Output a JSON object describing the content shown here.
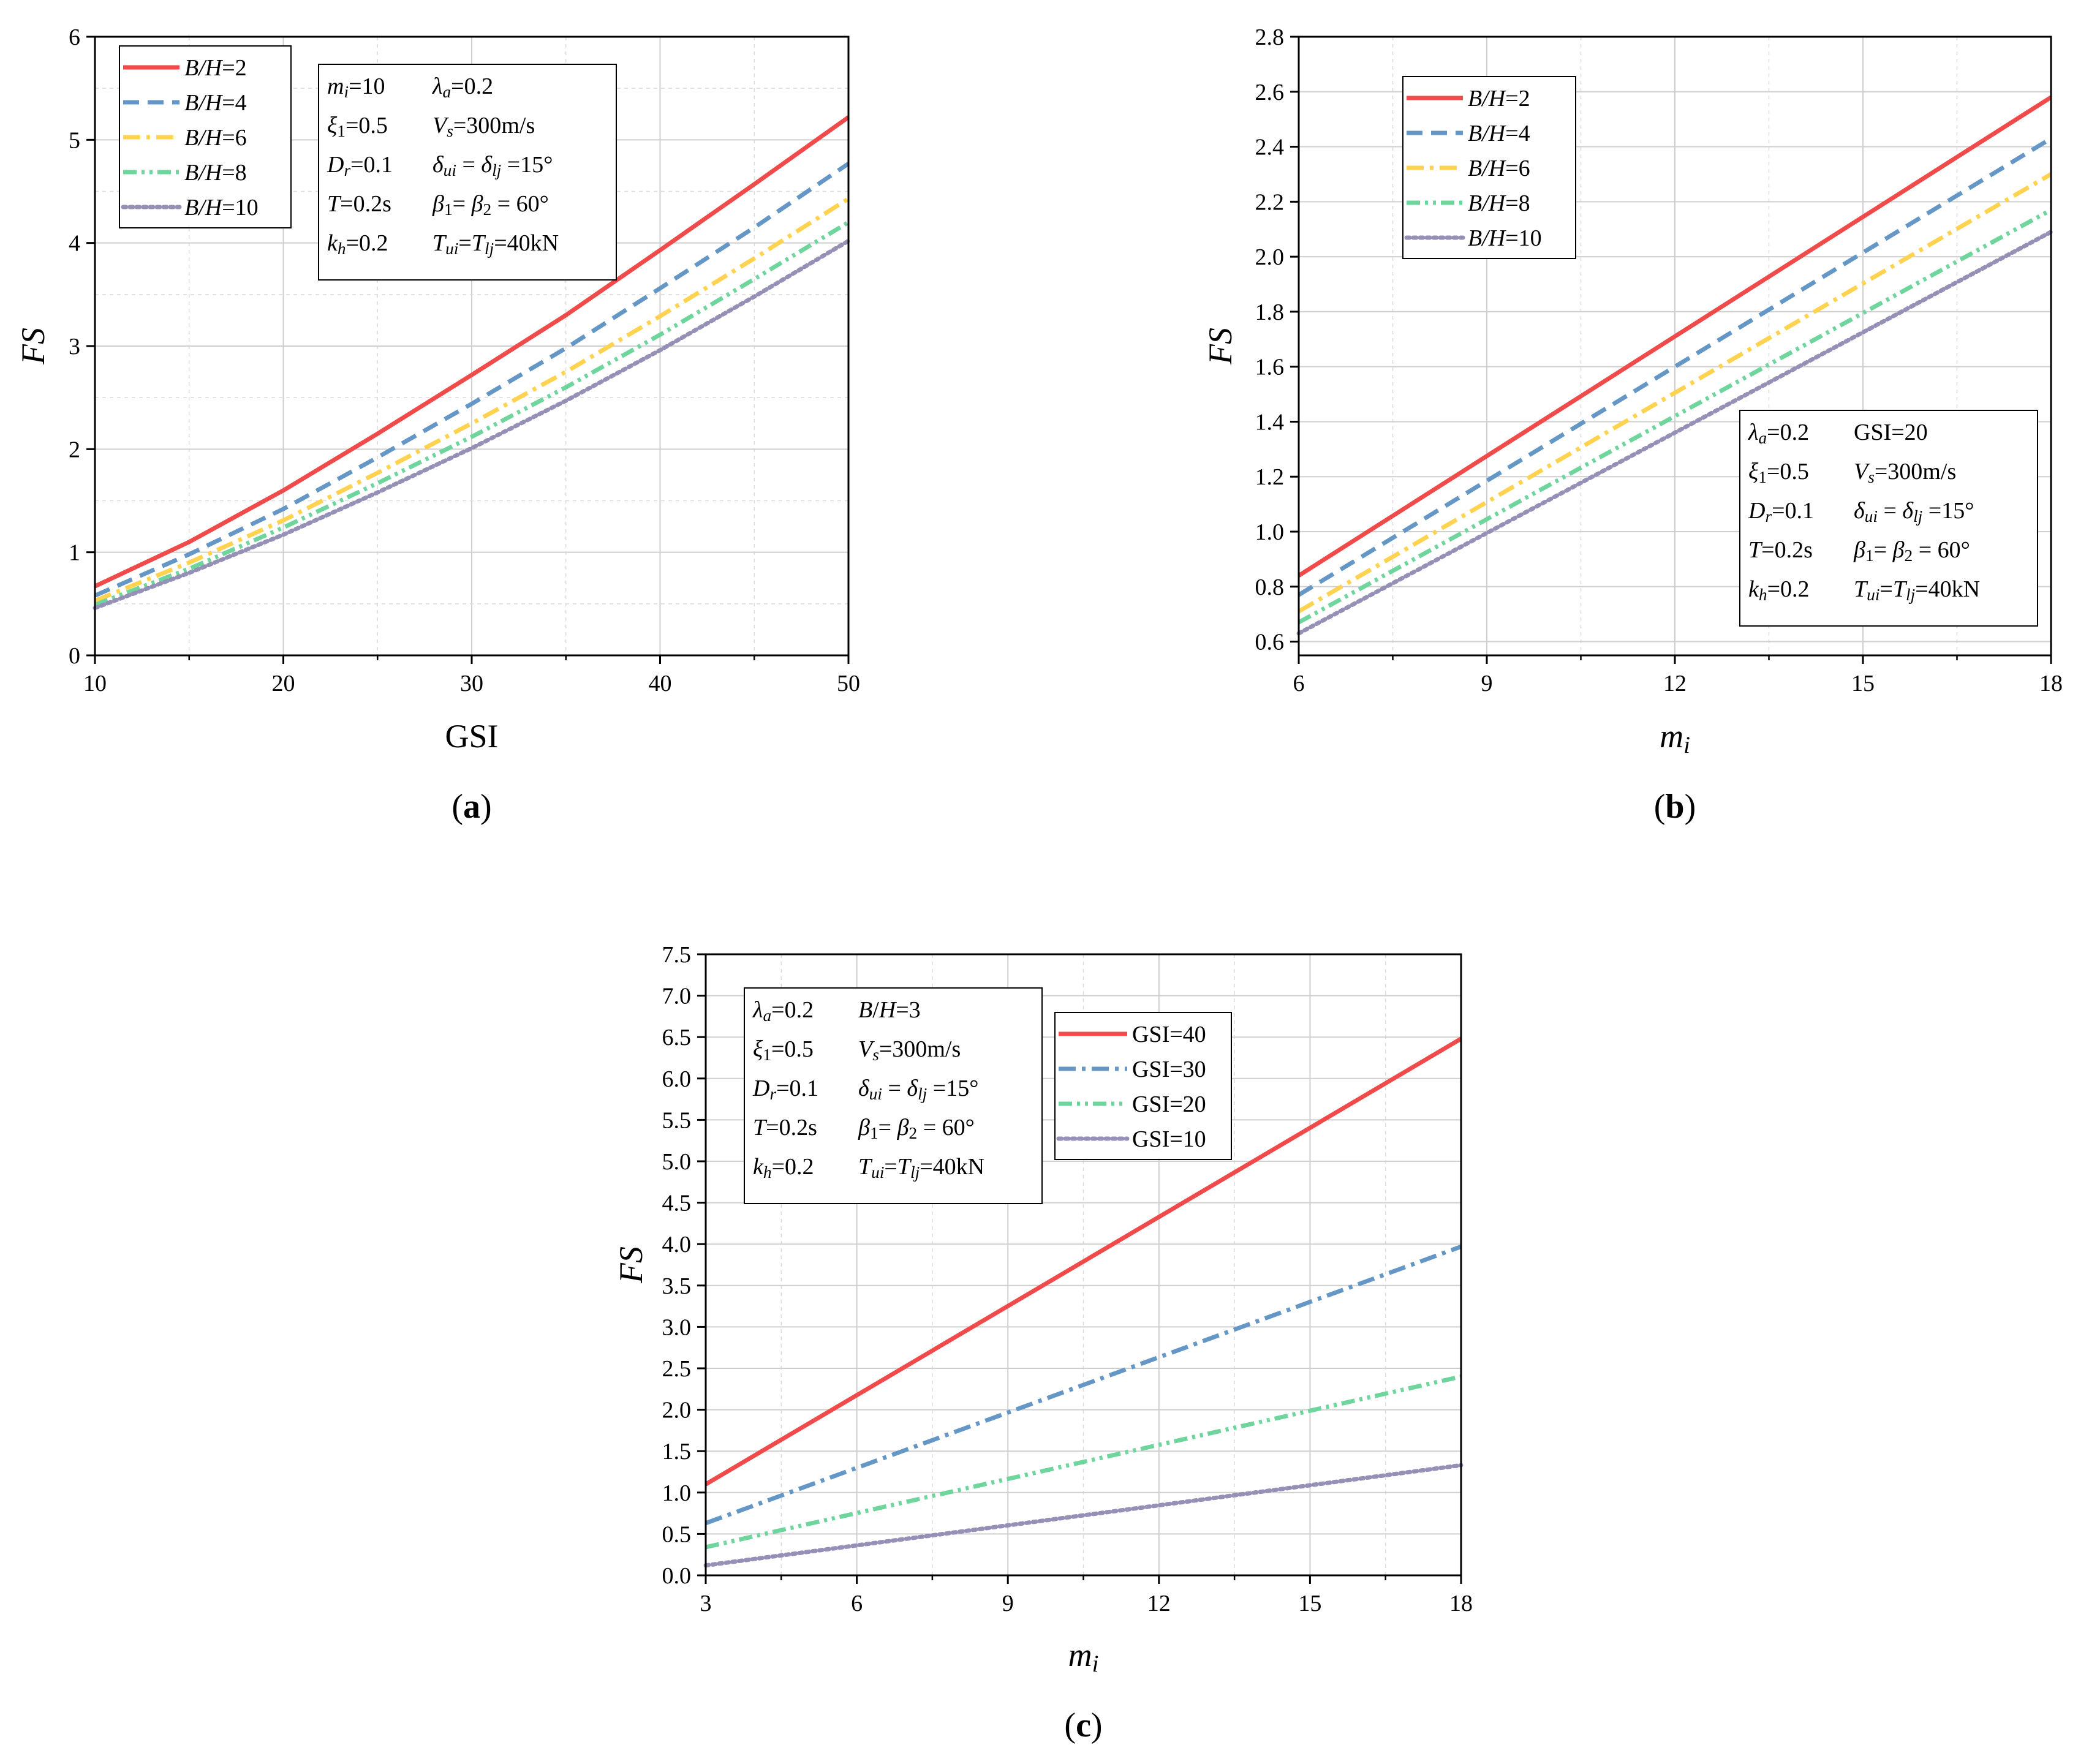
{
  "chart_data": [
    {
      "id": "a",
      "type": "line",
      "panel_label": "(a)",
      "panel_letter": "a",
      "xlabel": "GSI",
      "ylabel": "FS",
      "xlim": [
        10,
        50
      ],
      "ylim": [
        0,
        6
      ],
      "xticks": [
        10,
        20,
        30,
        40,
        50
      ],
      "yticks": [
        0,
        1,
        2,
        3,
        4,
        5,
        6
      ],
      "grid": true,
      "legend_position": "top-left",
      "x": [
        10,
        15,
        20,
        25,
        30,
        35,
        40,
        45,
        50
      ],
      "series": [
        {
          "name": "B/H=2",
          "var": "B/H",
          "eq": "=2",
          "color": "#f04a4a",
          "dash": "solid",
          "values": [
            0.67,
            1.1,
            1.6,
            2.15,
            2.72,
            3.3,
            3.93,
            4.57,
            5.22
          ]
        },
        {
          "name": "B/H=4",
          "var": "B/H",
          "eq": "=4",
          "color": "#6497c6",
          "dash": "dash",
          "values": [
            0.58,
            0.98,
            1.42,
            1.92,
            2.44,
            2.98,
            3.56,
            4.15,
            4.77
          ]
        },
        {
          "name": "B/H=6",
          "var": "B/H",
          "eq": "=6",
          "color": "#ffd24f",
          "dash": "dashdot",
          "values": [
            0.53,
            0.9,
            1.31,
            1.77,
            2.25,
            2.75,
            3.29,
            3.85,
            4.43
          ]
        },
        {
          "name": "B/H=8",
          "var": "B/H",
          "eq": "=8",
          "color": "#6ed59c",
          "dash": "dashdotdot",
          "values": [
            0.49,
            0.84,
            1.24,
            1.67,
            2.12,
            2.6,
            3.11,
            3.65,
            4.2
          ]
        },
        {
          "name": "B/H=10",
          "var": "B/H",
          "eq": "=10",
          "color": "#9590b5",
          "dash": "dot",
          "values": [
            0.46,
            0.8,
            1.17,
            1.58,
            2.01,
            2.47,
            2.96,
            3.48,
            4.02
          ]
        }
      ],
      "params": [
        [
          "m_i=10",
          "λ_a=0.2"
        ],
        [
          "ξ_1=0.5",
          "V_s=300m/s"
        ],
        [
          "D_r=0.1",
          "δ_ui = δ_lj =15°"
        ],
        [
          "T=0.2s",
          "β_1= β_2 = 60°"
        ],
        [
          "k_h=0.2",
          "T_ui=T_lj=40kN"
        ]
      ]
    },
    {
      "id": "b",
      "type": "line",
      "panel_label": "(b)",
      "panel_letter": "b",
      "xlabel": "m_i",
      "ylabel": "FS",
      "xlim": [
        6,
        18
      ],
      "ylim": [
        0.55,
        2.8
      ],
      "xticks": [
        6,
        9,
        12,
        15,
        18
      ],
      "yticks": [
        0.6,
        0.8,
        1.0,
        1.2,
        1.4,
        1.6,
        1.8,
        2.0,
        2.2,
        2.4,
        2.6,
        2.8
      ],
      "grid": true,
      "legend_position": "top-left",
      "x": [
        6,
        18
      ],
      "series": [
        {
          "name": "B/H=2",
          "var": "B/H",
          "eq": "=2",
          "color": "#f04a4a",
          "dash": "solid",
          "values": [
            0.84,
            2.58
          ]
        },
        {
          "name": "B/H=4",
          "var": "B/H",
          "eq": "=4",
          "color": "#6497c6",
          "dash": "dash",
          "values": [
            0.77,
            2.43
          ]
        },
        {
          "name": "B/H=6",
          "var": "B/H",
          "eq": "=6",
          "color": "#ffd24f",
          "dash": "dashdot",
          "values": [
            0.71,
            2.3
          ]
        },
        {
          "name": "B/H=8",
          "var": "B/H",
          "eq": "=8",
          "color": "#6ed59c",
          "dash": "dashdotdot",
          "values": [
            0.67,
            2.17
          ]
        },
        {
          "name": "B/H=10",
          "var": "B/H",
          "eq": "=10",
          "color": "#9590b5",
          "dash": "dot",
          "values": [
            0.63,
            2.09
          ]
        }
      ],
      "params": [
        [
          "λ_a=0.2",
          "GSI=20"
        ],
        [
          "ξ_1=0.5",
          "V_s=300m/s"
        ],
        [
          "D_r=0.1",
          "δ_ui = δ_lj =15°"
        ],
        [
          "T=0.2s",
          "β_1= β_2 = 60°"
        ],
        [
          "k_h=0.2",
          "T_ui=T_lj=40kN"
        ]
      ]
    },
    {
      "id": "c",
      "type": "line",
      "panel_label": "(c)",
      "panel_letter": "c",
      "xlabel": "m_i",
      "ylabel": "FS",
      "xlim": [
        3,
        18
      ],
      "ylim": [
        0,
        7.5
      ],
      "xticks": [
        3,
        6,
        9,
        12,
        15,
        18
      ],
      "yticks": [
        0.0,
        0.5,
        1.0,
        1.5,
        2.0,
        2.5,
        3.0,
        3.5,
        4.0,
        4.5,
        5.0,
        5.5,
        6.0,
        6.5,
        7.0,
        7.5
      ],
      "grid": true,
      "legend_position": "top-center",
      "x": [
        3,
        18
      ],
      "series": [
        {
          "name": "GSI=40",
          "var": "",
          "eq": "GSI=40",
          "color": "#f04a4a",
          "dash": "solid",
          "values": [
            1.1,
            6.48
          ]
        },
        {
          "name": "GSI=30",
          "var": "",
          "eq": "GSI=30",
          "color": "#6497c6",
          "dash": "dashdot",
          "values": [
            0.63,
            3.97
          ]
        },
        {
          "name": "GSI=20",
          "var": "",
          "eq": "GSI=20",
          "color": "#6ed59c",
          "dash": "dashdotdot",
          "values": [
            0.34,
            2.4
          ]
        },
        {
          "name": "GSI=10",
          "var": "",
          "eq": "GSI=10",
          "color": "#9590b5",
          "dash": "dot",
          "values": [
            0.12,
            1.33
          ]
        }
      ],
      "params": [
        [
          "λ_a=0.2",
          "B/H=3"
        ],
        [
          "ξ_1=0.5",
          "V_s=300m/s"
        ],
        [
          "D_r=0.1",
          "δ_ui = δ_lj =15°"
        ],
        [
          "T=0.2s",
          "β_1= β_2 = 60°"
        ],
        [
          "k_h=0.2",
          "T_ui=T_lj=40kN"
        ]
      ]
    }
  ]
}
